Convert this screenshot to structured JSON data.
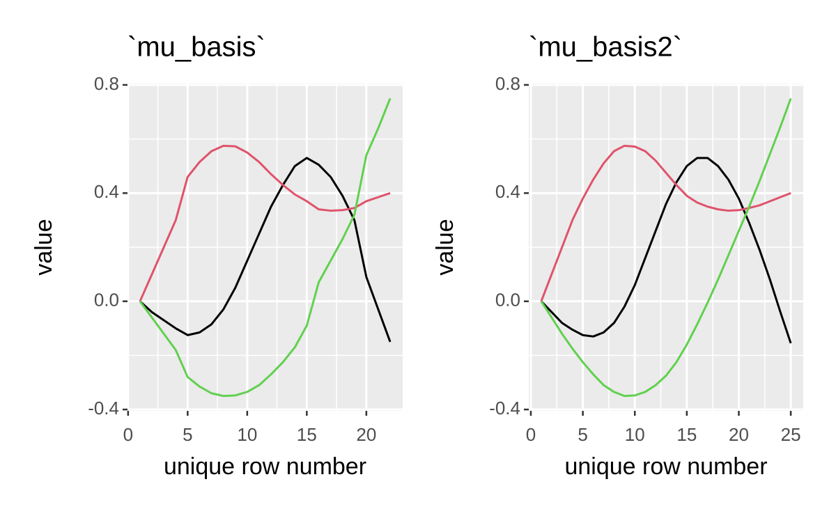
{
  "chart_data": [
    {
      "type": "line",
      "title": "`mu_basis`",
      "x_label": "unique row number",
      "y_label": "value",
      "x": [
        1,
        2,
        3,
        4,
        5,
        6,
        7,
        8,
        9,
        10,
        11,
        12,
        13,
        14,
        15,
        16,
        17,
        18,
        19,
        20,
        21,
        22
      ],
      "series": [
        {
          "color": "#000000",
          "values": [
            0,
            -0.04,
            -0.07,
            -0.1,
            -0.125,
            -0.115,
            -0.085,
            -0.03,
            0.05,
            0.15,
            0.25,
            0.35,
            0.43,
            0.5,
            0.53,
            0.505,
            0.46,
            0.39,
            0.3,
            0.09,
            -0.03,
            -0.15
          ]
        },
        {
          "color": "#DF536B",
          "values": [
            0,
            0.1,
            0.2,
            0.3,
            0.46,
            0.515,
            0.555,
            0.575,
            0.573,
            0.55,
            0.515,
            0.47,
            0.43,
            0.395,
            0.37,
            0.34,
            0.335,
            0.337,
            0.345,
            0.37,
            0.385,
            0.4
          ]
        },
        {
          "color": "#61D04F",
          "values": [
            0,
            -0.06,
            -0.12,
            -0.18,
            -0.28,
            -0.315,
            -0.34,
            -0.35,
            -0.348,
            -0.335,
            -0.31,
            -0.27,
            -0.225,
            -0.17,
            -0.09,
            0.07,
            0.15,
            0.23,
            0.32,
            0.54,
            0.64,
            0.75
          ]
        }
      ],
      "xlim": [
        -0.05,
        23.05
      ],
      "xticks": [
        0,
        5,
        10,
        15,
        20
      ],
      "ylim": [
        -0.405,
        0.805
      ],
      "yticks": [
        -0.4,
        {
          "value": 0,
          "label": "0.0"
        },
        0.4,
        0.8
      ],
      "grid": true
    },
    {
      "type": "line",
      "title": "`mu_basis2`",
      "x_label": "unique row number",
      "y_label": "value",
      "x": [
        1,
        2,
        3,
        4,
        5,
        6,
        7,
        8,
        9,
        10,
        11,
        12,
        13,
        14,
        15,
        16,
        17,
        18,
        19,
        20,
        21,
        22,
        23,
        24,
        25
      ],
      "series": [
        {
          "color": "#000000",
          "values": [
            0,
            -0.04,
            -0.08,
            -0.105,
            -0.125,
            -0.13,
            -0.115,
            -0.08,
            -0.02,
            0.06,
            0.16,
            0.26,
            0.36,
            0.44,
            0.5,
            0.53,
            0.53,
            0.5,
            0.45,
            0.38,
            0.29,
            0.19,
            0.08,
            -0.04,
            -0.155
          ]
        },
        {
          "color": "#DF536B",
          "values": [
            0,
            0.1,
            0.2,
            0.3,
            0.38,
            0.45,
            0.51,
            0.555,
            0.575,
            0.572,
            0.555,
            0.52,
            0.475,
            0.43,
            0.39,
            0.365,
            0.35,
            0.34,
            0.335,
            0.337,
            0.345,
            0.355,
            0.37,
            0.385,
            0.4
          ]
        },
        {
          "color": "#61D04F",
          "values": [
            0,
            -0.06,
            -0.12,
            -0.175,
            -0.225,
            -0.27,
            -0.31,
            -0.335,
            -0.35,
            -0.348,
            -0.335,
            -0.31,
            -0.275,
            -0.225,
            -0.16,
            -0.085,
            -0.005,
            0.08,
            0.17,
            0.26,
            0.35,
            0.445,
            0.545,
            0.645,
            0.75
          ]
        }
      ],
      "xlim": [
        -0.2,
        26.2
      ],
      "xticks": [
        0,
        5,
        10,
        15,
        20,
        25
      ],
      "ylim": [
        -0.405,
        0.805
      ],
      "yticks": [
        -0.4,
        {
          "value": 0,
          "label": "0.0"
        },
        0.4,
        0.8
      ],
      "grid": true
    }
  ]
}
